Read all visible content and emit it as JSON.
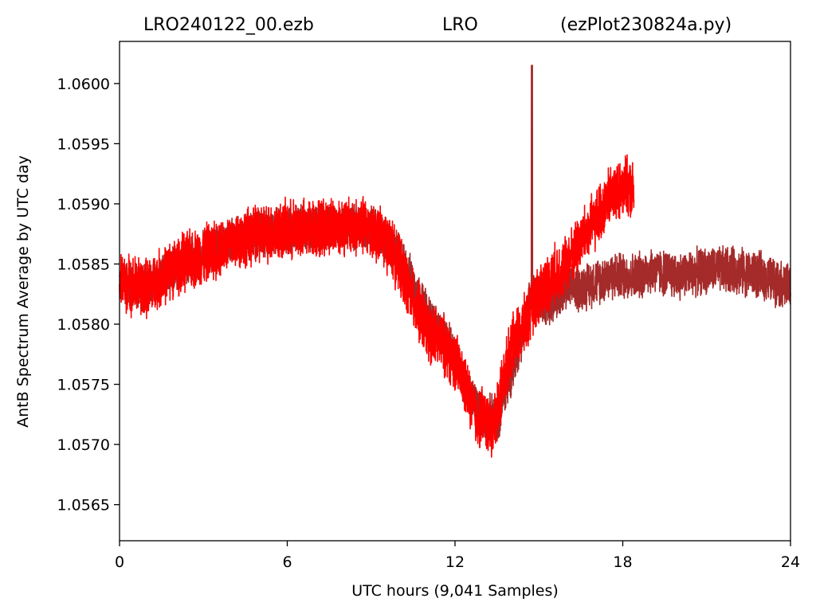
{
  "chart_data": {
    "type": "line",
    "title_left": "LRO240122_00.ezb",
    "title_center": "LRO",
    "title_right": "(ezPlot230824a.py)",
    "xlabel": "UTC hours  (9,041 Samples)",
    "ylabel": "AntB Spectrum Average by UTC day",
    "xlim": [
      0,
      24
    ],
    "ylim": [
      1.0562,
      1.06035
    ],
    "x_ticks": [
      0,
      6,
      12,
      18,
      24
    ],
    "x_tick_labels": [
      "0",
      "6",
      "12",
      "18",
      "24"
    ],
    "y_ticks": [
      1.0565,
      1.057,
      1.0575,
      1.058,
      1.0585,
      1.059,
      1.0595,
      1.06
    ],
    "y_tick_labels": [
      "1.0565",
      "1.0570",
      "1.0575",
      "1.0580",
      "1.0585",
      "1.0590",
      "1.0595",
      "1.0600"
    ],
    "grid": false,
    "series": [
      {
        "color": "#a52a2a",
        "x": [
          0,
          1,
          2,
          3,
          4,
          5,
          6,
          7,
          8,
          9,
          10,
          11,
          12,
          12.5,
          13,
          13.5,
          14,
          14.5,
          14.8,
          15,
          15.5,
          16,
          16.5,
          17,
          17.5,
          18,
          18.5,
          19,
          20,
          21,
          22,
          23,
          24
        ],
        "mean": [
          1.05835,
          1.0583,
          1.05848,
          1.05858,
          1.05868,
          1.05875,
          1.05878,
          1.0588,
          1.05882,
          1.0588,
          1.05858,
          1.05808,
          1.05775,
          1.0574,
          1.05725,
          1.0572,
          1.0576,
          1.058,
          1.0583,
          1.0582,
          1.0582,
          1.0583,
          1.0583,
          1.05835,
          1.0584,
          1.0584,
          1.0584,
          1.05845,
          1.0584,
          1.05845,
          1.05845,
          1.0584,
          1.0583
        ],
        "noise": 0.00022,
        "spikes": [
          {
            "x": 14.75,
            "y": 1.06015
          }
        ]
      },
      {
        "color": "#ff0000",
        "x": [
          0,
          1,
          2,
          3,
          4,
          5,
          6,
          7,
          8,
          9,
          9.7,
          10.5,
          11,
          11.5,
          12,
          12.5,
          12.8,
          13,
          13.3,
          13.5,
          14,
          14.5,
          15,
          15.5,
          16,
          16.5,
          17,
          17.5,
          18,
          18.4
        ],
        "mean": [
          1.05835,
          1.0583,
          1.05848,
          1.05858,
          1.05868,
          1.05875,
          1.05878,
          1.0588,
          1.05882,
          1.0588,
          1.05865,
          1.0582,
          1.05795,
          1.05785,
          1.0577,
          1.0574,
          1.0572,
          1.05725,
          1.0571,
          1.0573,
          1.0578,
          1.058,
          1.05825,
          1.0584,
          1.0585,
          1.0587,
          1.05885,
          1.05905,
          1.05915,
          1.0591
        ],
        "noise": 0.00028,
        "spikes": []
      }
    ]
  }
}
